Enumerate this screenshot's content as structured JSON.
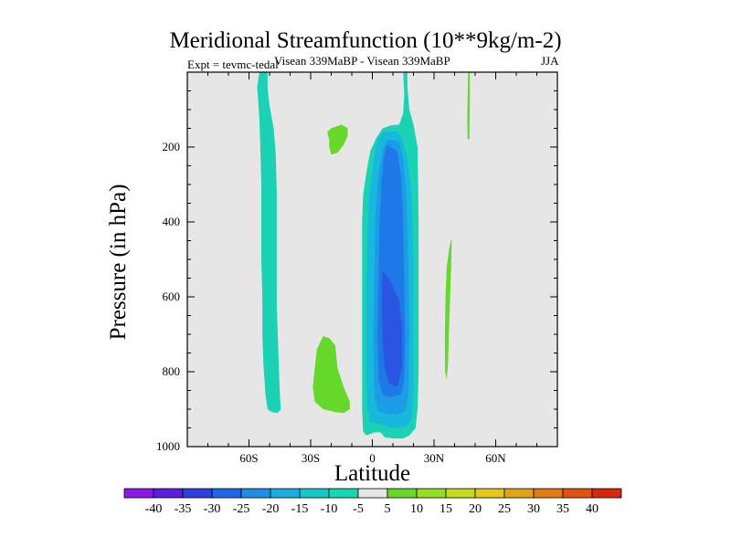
{
  "chart_data": {
    "type": "contour",
    "title": "Meridional Streamfunction (10**9kg/m-2)",
    "left_subtitle": "Expt = tevmc-tedal",
    "center_subtitle": "Visean 339MaBP - Visean 339MaBP",
    "right_subtitle": "JJA",
    "xlabel": "Latitude",
    "ylabel": "Pressure (in hPa)",
    "xlim": [
      -90,
      90
    ],
    "ylim": [
      1000,
      0
    ],
    "x_ticks": [
      -60,
      -30,
      0,
      30,
      60
    ],
    "x_tick_labels": [
      "60S",
      "30S",
      "0",
      "30N",
      "60N"
    ],
    "y_ticks": [
      200,
      400,
      600,
      800,
      1000
    ],
    "y_tick_labels": [
      "200",
      "400",
      "600",
      "800",
      "1000"
    ],
    "plot_background": "#e6e6e6",
    "colorbar": {
      "labels": [
        "-40",
        "-35",
        "-30",
        "-25",
        "-20",
        "-15",
        "-10",
        "-5",
        "5",
        "10",
        "15",
        "20",
        "25",
        "30",
        "35",
        "40"
      ],
      "colors": [
        "#8a1ae6",
        "#5a1fdc",
        "#2d3fe0",
        "#1f66e8",
        "#1c8ee8",
        "#18aee0",
        "#12c8c8",
        "#16d8b0",
        "#e6e6e6",
        "#66d82a",
        "#96de22",
        "#c4dc1e",
        "#e2c818",
        "#e2a414",
        "#e27c12",
        "#e0520e",
        "#d8260a"
      ]
    },
    "regions": [
      {
        "name": "southern-band",
        "level": "-10",
        "color": "#1cd2b4",
        "points": [
          [
            -55,
            0
          ],
          [
            -51,
            0
          ],
          [
            -51,
            40
          ],
          [
            -50,
            90
          ],
          [
            -48,
            150
          ],
          [
            -47,
            220
          ],
          [
            -46.5,
            320
          ],
          [
            -46.5,
            420
          ],
          [
            -46.5,
            520
          ],
          [
            -46.5,
            620
          ],
          [
            -46,
            700
          ],
          [
            -45.5,
            780
          ],
          [
            -45,
            860
          ],
          [
            -44.5,
            900
          ],
          [
            -46,
            910
          ],
          [
            -49,
            908
          ],
          [
            -51,
            900
          ],
          [
            -52,
            860
          ],
          [
            -53,
            780
          ],
          [
            -53.5,
            700
          ],
          [
            -53.5,
            600
          ],
          [
            -54,
            500
          ],
          [
            -54,
            420
          ],
          [
            -54,
            300
          ],
          [
            -54.5,
            200
          ],
          [
            -55,
            120
          ],
          [
            -56,
            40
          ]
        ]
      },
      {
        "name": "sh-positive-upper",
        "level": "10",
        "color": "#66d82a",
        "points": [
          [
            -20,
            150
          ],
          [
            -15,
            140
          ],
          [
            -12,
            150
          ],
          [
            -12,
            170
          ],
          [
            -14,
            195
          ],
          [
            -17,
            215
          ],
          [
            -20,
            220
          ],
          [
            -21,
            200
          ],
          [
            -21,
            180
          ],
          [
            -22,
            160
          ]
        ]
      },
      {
        "name": "sh-positive-lower",
        "level": "10",
        "color": "#66d82a",
        "points": [
          [
            -27,
            740
          ],
          [
            -24,
            705
          ],
          [
            -21,
            710
          ],
          [
            -18,
            730
          ],
          [
            -17,
            790
          ],
          [
            -14,
            840
          ],
          [
            -11,
            880
          ],
          [
            -11,
            900
          ],
          [
            -14,
            910
          ],
          [
            -18,
            908
          ],
          [
            -24,
            900
          ],
          [
            -28,
            880
          ],
          [
            -29,
            840
          ],
          [
            -28,
            790
          ]
        ]
      },
      {
        "name": "nh-positive-thin-east",
        "level": "10",
        "color": "#66d82a",
        "points": [
          [
            46.6,
            0
          ],
          [
            47.4,
            0
          ],
          [
            47.4,
            80
          ],
          [
            47.2,
            180
          ],
          [
            46.3,
            178
          ],
          [
            46.2,
            120
          ]
        ]
      },
      {
        "name": "nh-positive-mid",
        "level": "10",
        "color": "#66d82a",
        "points": [
          [
            38.3,
            448
          ],
          [
            38.6,
            448
          ],
          [
            38.3,
            520
          ],
          [
            37.8,
            600
          ],
          [
            37.2,
            700
          ],
          [
            36.8,
            780
          ],
          [
            36.2,
            820
          ],
          [
            35.4,
            800
          ],
          [
            35.3,
            700
          ],
          [
            35.6,
            600
          ],
          [
            36.2,
            520
          ],
          [
            37.4,
            470
          ]
        ]
      },
      {
        "name": "cell-outer",
        "level": "-10",
        "color": "#1cd2b4",
        "points": [
          [
            15,
            0
          ],
          [
            17,
            0
          ],
          [
            17,
            40
          ],
          [
            18,
            100
          ],
          [
            20,
            140
          ],
          [
            22,
            200
          ],
          [
            22.5,
            400
          ],
          [
            22.5,
            600
          ],
          [
            22.5,
            800
          ],
          [
            22,
            900
          ],
          [
            21,
            950
          ],
          [
            18,
            970
          ],
          [
            15,
            978
          ],
          [
            10,
            978
          ],
          [
            6,
            975
          ],
          [
            4,
            962
          ],
          [
            1,
            962
          ],
          [
            -3,
            970
          ],
          [
            -4.5,
            960
          ],
          [
            -5,
            900
          ],
          [
            -5,
            700
          ],
          [
            -5,
            500
          ],
          [
            -5,
            400
          ],
          [
            -4.5,
            330
          ],
          [
            -3,
            270
          ],
          [
            -1,
            210
          ],
          [
            2,
            175
          ],
          [
            5,
            150
          ],
          [
            9,
            142
          ],
          [
            13,
            140
          ],
          [
            15,
            110
          ],
          [
            15.5,
            60
          ]
        ]
      },
      {
        "name": "cell-15",
        "level": "-15",
        "color": "#16b8dc",
        "points": [
          [
            5,
            160
          ],
          [
            12,
            158
          ],
          [
            14,
            175
          ],
          [
            17,
            225
          ],
          [
            19,
            320
          ],
          [
            20,
            500
          ],
          [
            20,
            700
          ],
          [
            20,
            860
          ],
          [
            19,
            930
          ],
          [
            16,
            948
          ],
          [
            11,
            950
          ],
          [
            6,
            945
          ],
          [
            3,
            938
          ],
          [
            -1,
            935
          ],
          [
            -2.5,
            900
          ],
          [
            -3,
            780
          ],
          [
            -3,
            600
          ],
          [
            -2.5,
            450
          ],
          [
            -1.5,
            330
          ],
          [
            0.5,
            240
          ],
          [
            2,
            190
          ]
        ]
      },
      {
        "name": "cell-20",
        "level": "-20",
        "color": "#1c9ce6",
        "points": [
          [
            7,
            180
          ],
          [
            13,
            185
          ],
          [
            15,
            230
          ],
          [
            16.5,
            330
          ],
          [
            17.5,
            500
          ],
          [
            18,
            700
          ],
          [
            17.5,
            860
          ],
          [
            16,
            905
          ],
          [
            12,
            915
          ],
          [
            7,
            912
          ],
          [
            3,
            905
          ],
          [
            1,
            870
          ],
          [
            0.5,
            700
          ],
          [
            1,
            520
          ],
          [
            1.5,
            380
          ],
          [
            3,
            270
          ],
          [
            5,
            210
          ]
        ]
      },
      {
        "name": "cell-25",
        "level": "-25",
        "color": "#1f78e8",
        "points": [
          [
            7,
            195
          ],
          [
            12,
            210
          ],
          [
            14,
            280
          ],
          [
            15,
            400
          ],
          [
            15.5,
            560
          ],
          [
            16,
            720
          ],
          [
            15.5,
            820
          ],
          [
            14,
            860
          ],
          [
            9,
            868
          ],
          [
            5,
            862
          ],
          [
            3,
            820
          ],
          [
            2.5,
            700
          ],
          [
            3,
            550
          ],
          [
            3.5,
            400
          ],
          [
            4.5,
            290
          ],
          [
            5.5,
            230
          ]
        ]
      },
      {
        "name": "cell-30",
        "level": "-30",
        "color": "#2a54e2",
        "points": [
          [
            5,
            530
          ],
          [
            9,
            560
          ],
          [
            13,
            610
          ],
          [
            14.5,
            680
          ],
          [
            14.5,
            790
          ],
          [
            12,
            840
          ],
          [
            8,
            830
          ],
          [
            6,
            790
          ],
          [
            5,
            720
          ],
          [
            4.5,
            620
          ]
        ]
      }
    ]
  }
}
